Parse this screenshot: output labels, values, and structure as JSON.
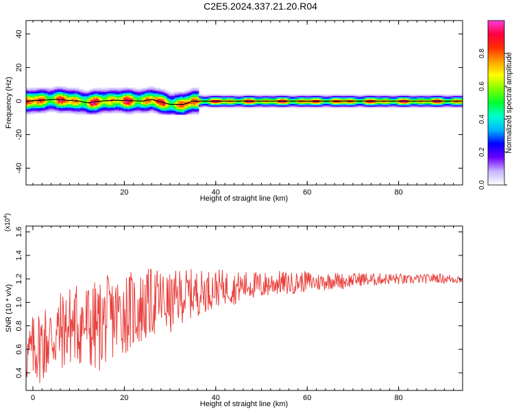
{
  "title": "C2E5.2024.337.21.20.R04",
  "chart_data": [
    {
      "type": "heatmap",
      "xlabel": "Height of straight line (km)",
      "ylabel": "Frequency (Hz)",
      "xlim": [
        -1.5,
        94
      ],
      "ylim": [
        -50,
        48
      ],
      "xticks": [
        "20",
        "40",
        "60",
        "80"
      ],
      "yticks": [
        "40",
        "20",
        "0",
        "-20",
        "-40"
      ],
      "colorbar": {
        "label": "Normalized spectral amplitude",
        "range": [
          0,
          1
        ],
        "ticks": [
          "0.0",
          "0.2",
          "0.4",
          "0.6",
          "0.8"
        ],
        "colors": [
          "#ffffff",
          "#c8b4ff",
          "#6a00ff",
          "#0000ff",
          "#00b4ff",
          "#00ffd0",
          "#00ff30",
          "#80ff00",
          "#ffff00",
          "#ffa000",
          "#ff3000",
          "#ff0040",
          "#ff3cdc"
        ]
      },
      "dominant_frequency": {
        "x": [
          -1,
          5,
          10,
          12,
          15,
          18,
          24,
          26,
          30,
          33,
          35,
          37,
          60,
          70,
          94
        ],
        "y": [
          0,
          1,
          0,
          -1,
          0,
          0.5,
          0,
          1,
          -2,
          -2,
          0,
          0,
          0,
          0,
          0
        ]
      }
    },
    {
      "type": "line",
      "xlabel": "Height of straight line (km)",
      "ylabel": "SNR (10 * v/v)",
      "ylabel_scale": "(x10",
      "ylabel_scale_exp": "4",
      "ylabel_scale_close": ")",
      "xlim": [
        -1.5,
        94
      ],
      "ylim": [
        0.25,
        1.65
      ],
      "xticks": [
        "0",
        "20",
        "40",
        "60",
        "80"
      ],
      "yticks": [
        "0.4",
        "0.6",
        "0.8",
        "1.0",
        "1.2",
        "1.4",
        "1.6"
      ],
      "color": "#e8403c",
      "series": [
        {
          "x": [
            -1,
            0,
            2,
            4,
            6,
            8,
            10,
            12,
            14,
            16,
            18,
            20,
            22,
            24,
            26,
            28,
            30,
            32,
            34,
            36,
            38,
            40,
            42,
            44,
            46,
            48,
            50,
            52,
            54,
            56,
            58,
            60,
            62,
            64,
            66,
            68,
            70,
            72,
            74,
            76,
            78,
            80,
            82,
            84,
            86,
            88,
            90,
            92,
            94
          ],
          "y": [
            0.55,
            0.6,
            0.65,
            0.7,
            0.75,
            0.8,
            0.82,
            0.8,
            0.78,
            0.85,
            0.88,
            0.92,
            0.93,
            0.95,
            1.0,
            1.02,
            0.98,
            1.05,
            1.07,
            1.08,
            1.1,
            1.12,
            1.13,
            1.12,
            1.14,
            1.15,
            1.14,
            1.16,
            1.17,
            1.16,
            1.17,
            1.18,
            1.17,
            1.18,
            1.19,
            1.18,
            1.19,
            1.2,
            1.19,
            1.2,
            1.2,
            1.2,
            1.19,
            1.2,
            1.2,
            1.21,
            1.2,
            1.2,
            1.2
          ],
          "noise_amplitude": [
            0.25,
            0.3,
            0.35,
            0.35,
            0.35,
            0.35,
            0.38,
            0.4,
            0.4,
            0.38,
            0.36,
            0.36,
            0.34,
            0.32,
            0.3,
            0.28,
            0.26,
            0.24,
            0.22,
            0.2,
            0.18,
            0.16,
            0.15,
            0.14,
            0.13,
            0.12,
            0.12,
            0.11,
            0.1,
            0.1,
            0.09,
            0.09,
            0.08,
            0.08,
            0.07,
            0.07,
            0.06,
            0.06,
            0.06,
            0.05,
            0.05,
            0.05,
            0.04,
            0.04,
            0.04,
            0.04,
            0.04,
            0.04,
            0.04
          ]
        }
      ]
    }
  ]
}
